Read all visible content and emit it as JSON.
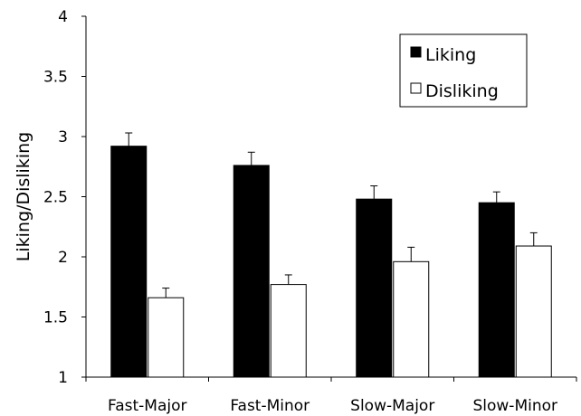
{
  "chart_data": {
    "type": "bar",
    "title": "",
    "xlabel": "",
    "ylabel": "Liking/Disliking",
    "ylim": [
      1,
      4
    ],
    "yticks": [
      "1",
      "1.5",
      "2",
      "2.5",
      "3",
      "3.5",
      "4"
    ],
    "ytick_values": [
      1,
      1.5,
      2,
      2.5,
      3,
      3.5,
      4
    ],
    "categories": [
      "Fast-Major",
      "Fast-Minor",
      "Slow-Major",
      "Slow-Minor"
    ],
    "series": [
      {
        "name": "Liking",
        "color": "#000000",
        "values": [
          2.92,
          2.76,
          2.48,
          2.45
        ],
        "errors": [
          0.11,
          0.11,
          0.11,
          0.09
        ]
      },
      {
        "name": "Disliking",
        "color": "#ffffff",
        "values": [
          1.66,
          1.77,
          1.96,
          2.09
        ],
        "errors": [
          0.08,
          0.08,
          0.12,
          0.11
        ]
      }
    ],
    "error_bars": "upper",
    "grid": false,
    "legend_position": "top-right"
  }
}
